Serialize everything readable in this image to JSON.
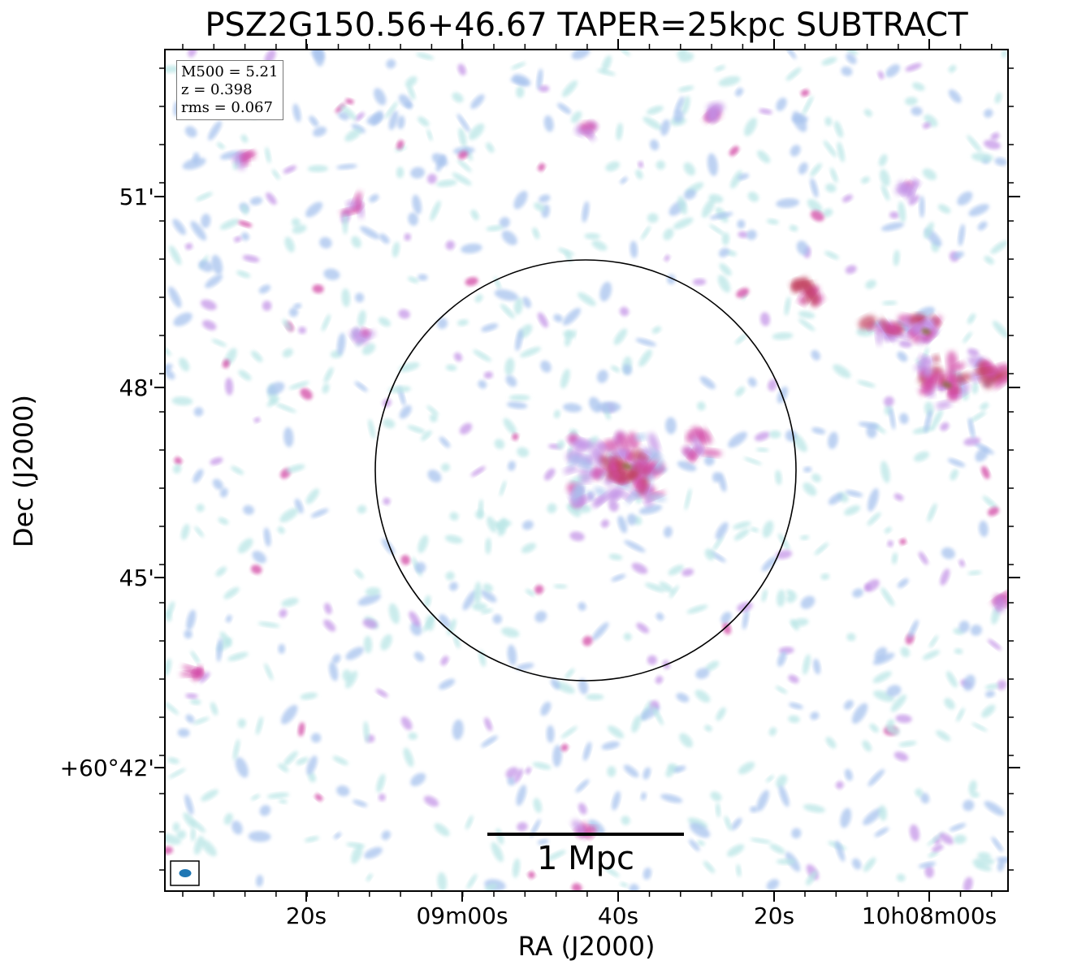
{
  "title": "PSZ2G150.56+46.67 TAPER=25kpc SUBTRACT",
  "axes": {
    "xlabel": "RA (J2000)",
    "ylabel": "Dec (J2000)",
    "x_ticks": [
      "20s",
      "09m00s",
      "40s",
      "20s",
      "10h08m00s"
    ],
    "y_ticks": [
      "51'",
      "48'",
      "45'",
      "+60°42'"
    ]
  },
  "info": {
    "mass": "M500 = 5.21",
    "redshift": "z = 0.398",
    "rms": "rms = 0.067"
  },
  "scale_bar": {
    "label": "1 Mpc"
  },
  "colors": {
    "faint": "#b9e6e6",
    "low": "#a7c3ee",
    "mid": "#c08ee6",
    "high": "#d24aa6",
    "peak": "#c2405e",
    "core": "#8a6a3a",
    "beam": "#1f77b4"
  }
}
